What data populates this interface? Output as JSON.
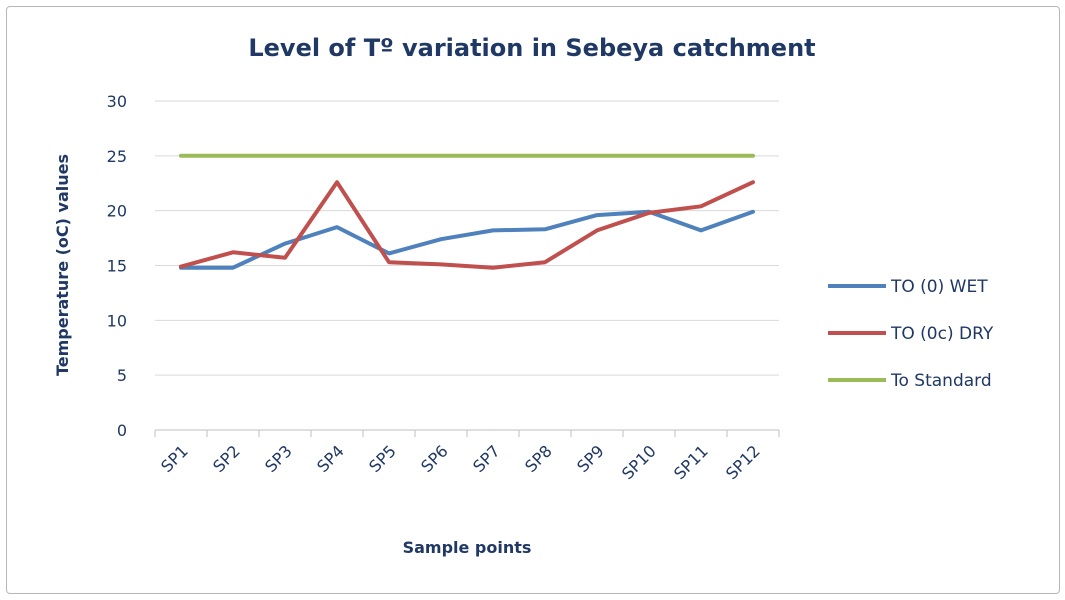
{
  "chart_data": {
    "type": "line",
    "title": "Level of Tº variation in Sebeya catchment",
    "xlabel": "Sample points",
    "ylabel": "Temperature (oC) values",
    "categories": [
      "SP1",
      "SP2",
      "SP3",
      "SP4",
      "SP5",
      "SP6",
      "SP7",
      "SP8",
      "SP9",
      "SP10",
      "SP11",
      "SP12"
    ],
    "ylim": [
      0,
      30
    ],
    "yticks": [
      0,
      5,
      10,
      15,
      20,
      25,
      30
    ],
    "grid": true,
    "legend_position": "right",
    "series": [
      {
        "name": "TO (0) WET",
        "color": "#4f81bd",
        "values": [
          14.8,
          14.8,
          17.0,
          18.5,
          16.1,
          17.4,
          18.2,
          18.3,
          19.6,
          19.9,
          18.2,
          19.9
        ]
      },
      {
        "name": "TO (0c) DRY",
        "color": "#c0504d",
        "values": [
          14.9,
          16.2,
          15.7,
          22.6,
          15.3,
          15.1,
          14.8,
          15.3,
          18.2,
          19.8,
          20.4,
          22.6
        ]
      },
      {
        "name": "To Standard",
        "color": "#9bbb59",
        "values": [
          25,
          25,
          25,
          25,
          25,
          25,
          25,
          25,
          25,
          25,
          25,
          25
        ]
      }
    ]
  }
}
